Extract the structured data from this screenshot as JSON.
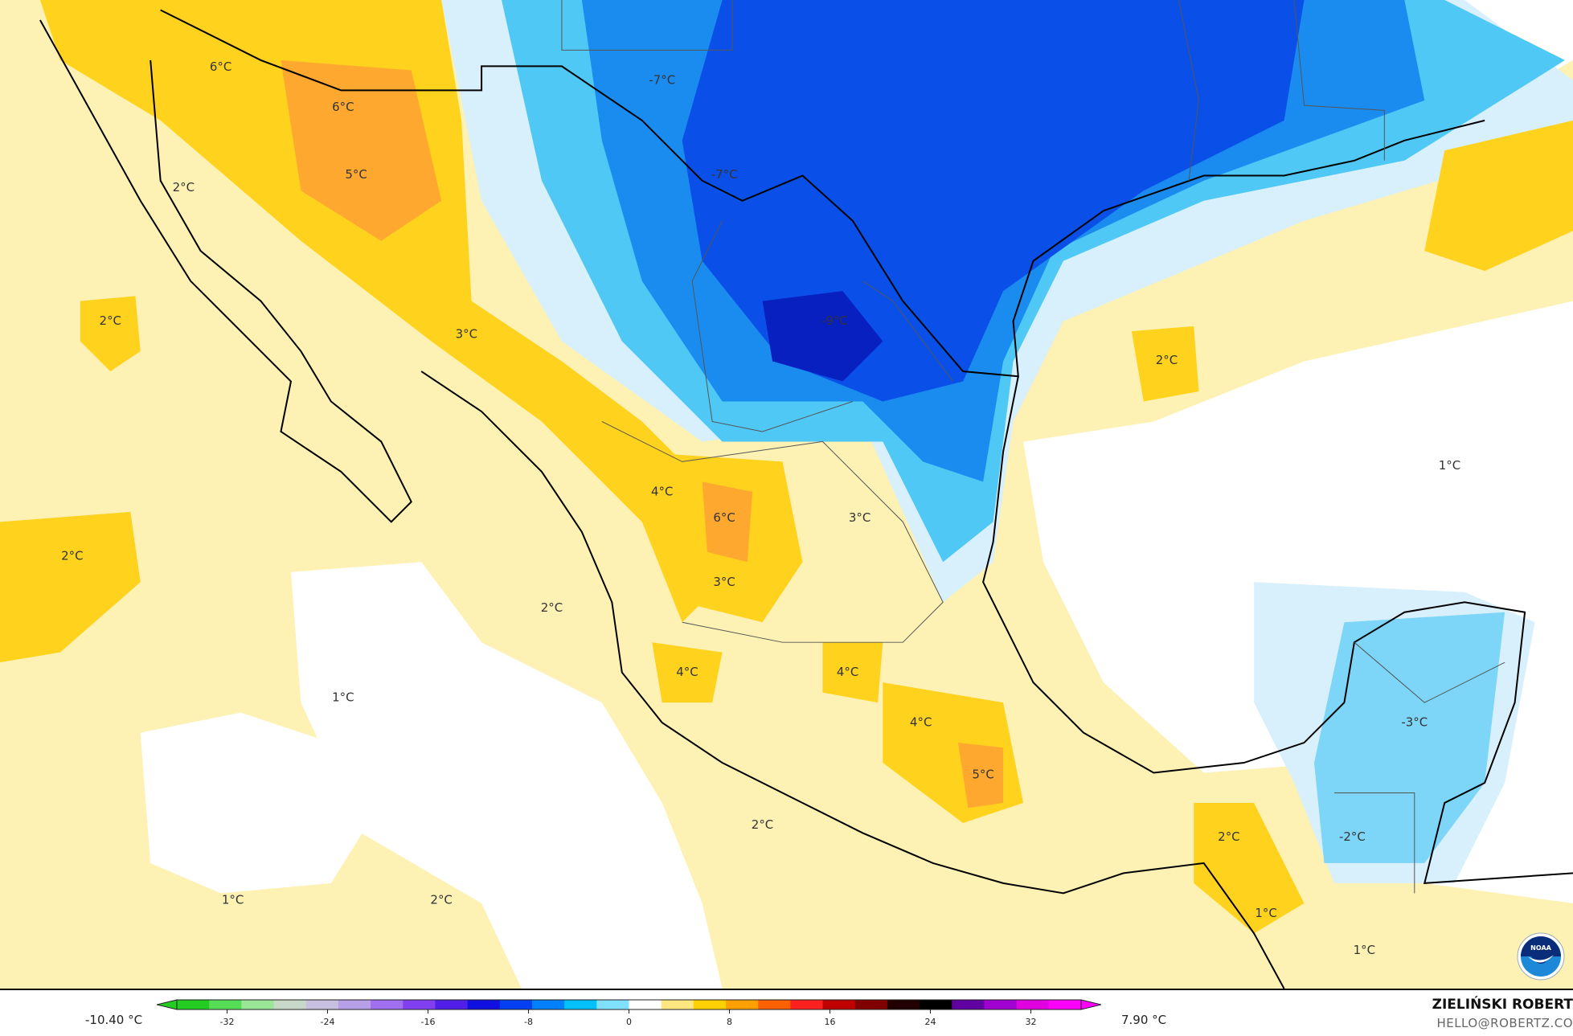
{
  "map": {
    "contour_labels": [
      "6°C",
      "6°C",
      "5°C",
      "2°C",
      "-7°C",
      "-7°C",
      "2°C",
      "3°C",
      "-9°C",
      "2°C",
      "1°C",
      "4°C",
      "6°C",
      "3°C",
      "2°C",
      "3°C",
      "2°C",
      "4°C",
      "4°C",
      "1°C",
      "4°C",
      "-3°C",
      "5°C",
      "2°C",
      "2°C",
      "-2°C",
      "1°C",
      "2°C",
      "1°C",
      "1°C"
    ],
    "logo": "NOAA"
  },
  "colorbar": {
    "min_value": "-10.40 °C",
    "max_value": "7.90 °C",
    "ticks": [
      "-32",
      "-24",
      "-16",
      "-8",
      "0",
      "8",
      "16",
      "24",
      "32"
    ],
    "colors": [
      "#22cc22",
      "#55dd55",
      "#99e699",
      "#c8d8c8",
      "#c8c0e0",
      "#b8a0e8",
      "#a070f0",
      "#8040f0",
      "#5020e8",
      "#1010e0",
      "#0040f0",
      "#0080ff",
      "#00c0ff",
      "#80e0ff",
      "#ffffff",
      "#ffe680",
      "#ffd000",
      "#ffa000",
      "#ff6000",
      "#ff2020",
      "#c00000",
      "#800000",
      "#200000",
      "#000000",
      "#6000a0",
      "#a000d0",
      "#e000e0",
      "#ff00ff"
    ]
  },
  "credits": {
    "author": "ZIELIŃSKI ROBERT",
    "email": "HELLO@ROBERTZ.CO"
  }
}
